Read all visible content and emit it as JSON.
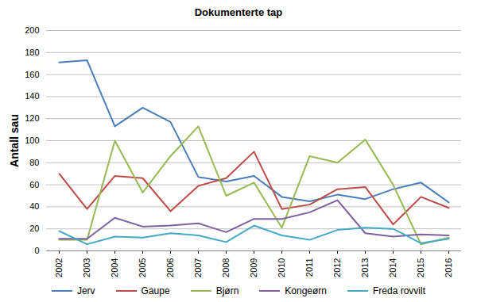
{
  "chart_data": {
    "type": "line",
    "title": "Dokumenterte tap",
    "y_label": "Antall sau",
    "categories": [
      "2002",
      "2003",
      "2004",
      "2005",
      "2006",
      "2007",
      "2008",
      "2009",
      "2010",
      "2011",
      "2012",
      "2013",
      "2014",
      "2015",
      "2016"
    ],
    "series": [
      {
        "name": "Jerv",
        "color": "#4a7ebb",
        "values": [
          171,
          173,
          113,
          130,
          117,
          67,
          63,
          68,
          49,
          45,
          51,
          47,
          56,
          62,
          44
        ]
      },
      {
        "name": "Gaupe",
        "color": "#be4b48",
        "values": [
          70,
          38,
          68,
          66,
          36,
          59,
          66,
          90,
          38,
          42,
          56,
          58,
          24,
          49,
          39
        ]
      },
      {
        "name": "Bjørn",
        "color": "#98b954",
        "values": [
          10,
          10,
          100,
          53,
          86,
          113,
          50,
          62,
          21,
          86,
          80,
          101,
          60,
          6,
          12
        ]
      },
      {
        "name": "Kongeørn",
        "color": "#7d60a0",
        "values": [
          11,
          11,
          30,
          22,
          23,
          25,
          17,
          29,
          29,
          35,
          46,
          16,
          13,
          15,
          14
        ]
      },
      {
        "name": "Freda rovvilt",
        "color": "#46aac5",
        "values": [
          18,
          6,
          13,
          12,
          16,
          14,
          8,
          23,
          14,
          10,
          19,
          21,
          20,
          7,
          11
        ]
      }
    ],
    "ylim": [
      0,
      200
    ],
    "yticks": [
      0,
      20,
      40,
      60,
      80,
      100,
      120,
      140,
      160,
      180,
      200
    ],
    "grid": true,
    "legend": "bottom"
  }
}
